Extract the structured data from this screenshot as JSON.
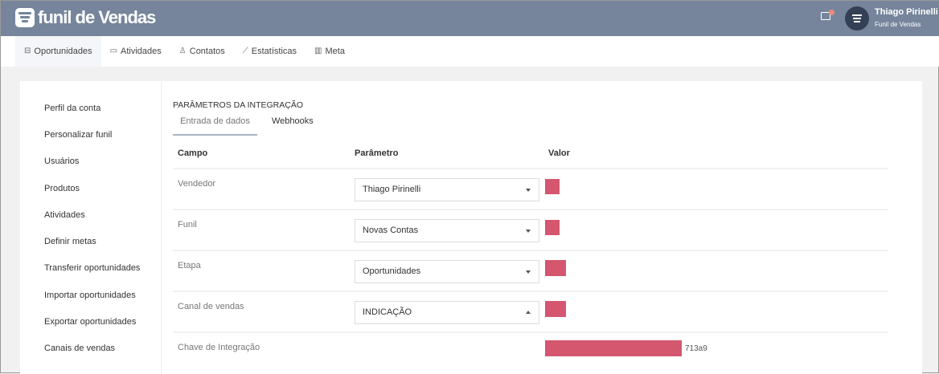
{
  "header": {
    "logo": "funil de Vendas",
    "user_name": "Thiago Pirinelli",
    "user_company": "Funil de Vendas"
  },
  "nav": [
    {
      "label": "Oportunidades",
      "icon": "briefcase-icon"
    },
    {
      "label": "Atividades",
      "icon": "calendar-icon"
    },
    {
      "label": "Contatos",
      "icon": "contacts-icon"
    },
    {
      "label": "Estatísticas",
      "icon": "trend-icon"
    },
    {
      "label": "Meta",
      "icon": "bar-chart-icon"
    }
  ],
  "sidebar": [
    "Perfil da conta",
    "Personalizar funil",
    "Usuários",
    "Produtos",
    "Atividades",
    "Definir metas",
    "Transferir oportunidades",
    "Importar oportunidades",
    "Exportar oportunidades",
    "Canais de vendas"
  ],
  "main": {
    "title": "PARÂMETROS DA INTEGRAÇÃO",
    "tabs": [
      "Entrada de dados",
      "Webhooks"
    ],
    "columns": [
      "Campo",
      "Parâmetro",
      "Valor"
    ],
    "rows": [
      {
        "campo": "Vendedor",
        "parametro": "Thiago Pirinelli"
      },
      {
        "campo": "Funil",
        "parametro": "Novas Contas"
      },
      {
        "campo": "Etapa",
        "parametro": "Oportunidades"
      },
      {
        "campo": "Canal de vendas",
        "parametro": "INDICAÇÃO"
      }
    ],
    "key_label": "Chave de Integração",
    "key_suffix": "713a9",
    "redaction_color": "#d4566f"
  }
}
